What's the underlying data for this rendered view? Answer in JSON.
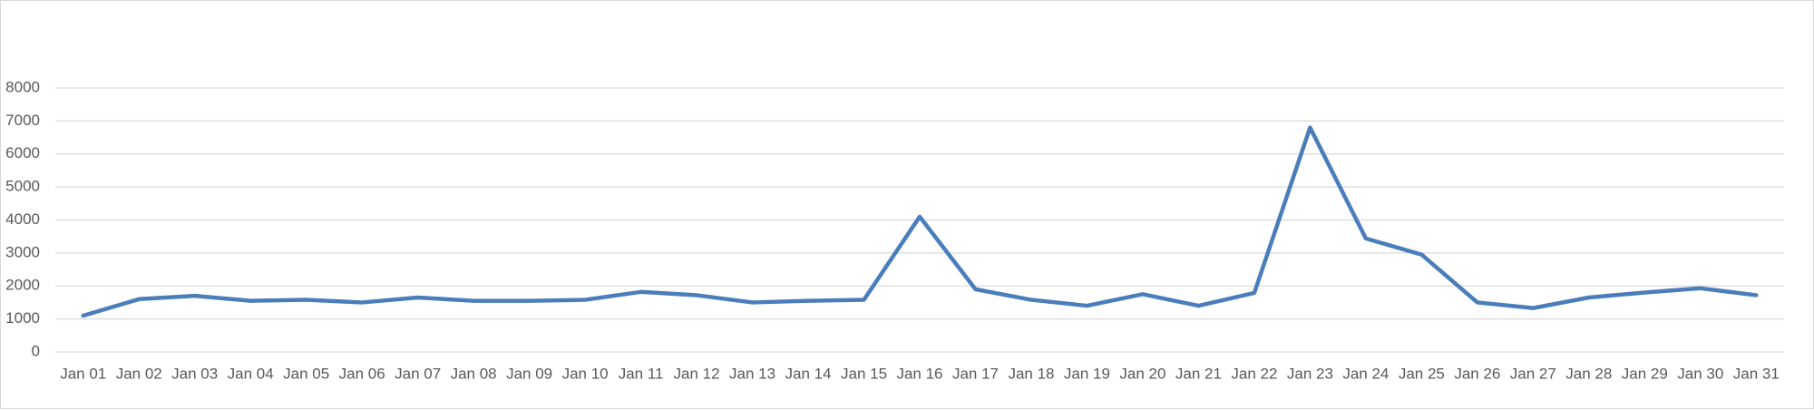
{
  "chart_data": {
    "type": "line",
    "categories": [
      "Jan 01",
      "Jan 02",
      "Jan 03",
      "Jan 04",
      "Jan 05",
      "Jan 06",
      "Jan 07",
      "Jan 08",
      "Jan 09",
      "Jan 10",
      "Jan 11",
      "Jan 12",
      "Jan 13",
      "Jan 14",
      "Jan 15",
      "Jan 16",
      "Jan 17",
      "Jan 18",
      "Jan 19",
      "Jan 20",
      "Jan 21",
      "Jan 22",
      "Jan 23",
      "Jan 24",
      "Jan 25",
      "Jan 26",
      "Jan 27",
      "Jan 28",
      "Jan 29",
      "Jan 30",
      "Jan 31"
    ],
    "values": [
      1100,
      1600,
      1700,
      1550,
      1580,
      1500,
      1650,
      1550,
      1550,
      1580,
      1820,
      1720,
      1500,
      1550,
      1580,
      4100,
      1900,
      1580,
      1400,
      1750,
      1400,
      1790,
      6800,
      3440,
      2950,
      1500,
      1330,
      1650,
      1800,
      1930,
      1720
    ],
    "color": "#4a7ebb",
    "ylim": [
      0,
      8000
    ],
    "yticks": [
      0,
      1000,
      2000,
      3000,
      4000,
      5000,
      6000,
      7000,
      8000
    ],
    "grid": true
  }
}
